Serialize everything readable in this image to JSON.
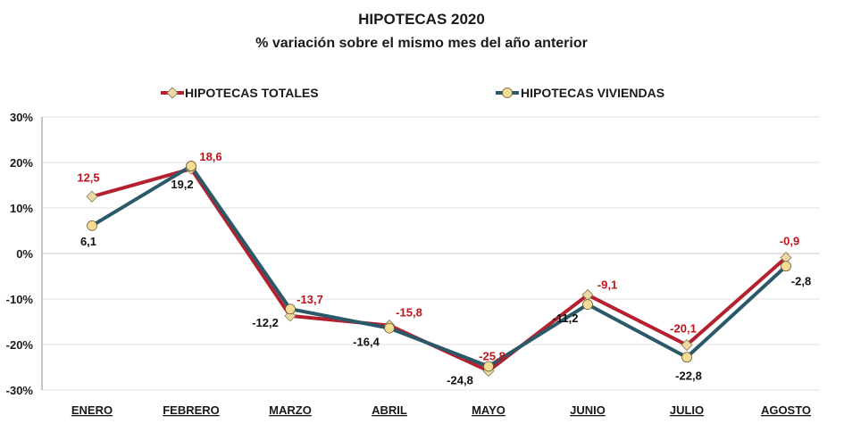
{
  "chart_data": {
    "type": "line",
    "title": "HIPOTECAS 2020",
    "subtitle": "% variación sobre el mismo mes del año anterior",
    "categories": [
      "ENERO",
      "FEBRERO",
      "MARZO",
      "ABRIL",
      "MAYO",
      "JUNIO",
      "JULIO",
      "AGOSTO"
    ],
    "ylim": [
      -30,
      30
    ],
    "yticks": [
      30,
      20,
      10,
      0,
      -10,
      -20,
      -30
    ],
    "ytick_labels": [
      "30%",
      "20%",
      "10%",
      "0%",
      "-10%",
      "-20%",
      "-30%"
    ],
    "grid": true,
    "legend_position": "top",
    "series": [
      {
        "name": "HIPOTECAS TOTALES",
        "color": "#b5202e",
        "marker_color": "#ead8a6",
        "marker": "diamond",
        "label_color": "#c0141c",
        "values": [
          12.5,
          18.6,
          -13.7,
          -15.8,
          -25.8,
          -9.1,
          -20.1,
          -0.9
        ],
        "labels": [
          "12,5",
          "18,6",
          "-13,7",
          "-15,8",
          "-25,8",
          "-9,1",
          "-20,1",
          "-0,9"
        ]
      },
      {
        "name": "HIPOTECAS VIVIENDAS",
        "color": "#2a5a6a",
        "marker_color": "#f2dc96",
        "marker": "circle",
        "label_color": "#111111",
        "values": [
          6.1,
          19.2,
          -12.2,
          -16.4,
          -24.8,
          -11.2,
          -22.8,
          -2.8
        ],
        "labels": [
          "6,1",
          "19,2",
          "-12,2",
          "-16,4",
          "-24,8",
          "-11,2",
          "-22,8",
          "-2,8"
        ]
      }
    ]
  }
}
